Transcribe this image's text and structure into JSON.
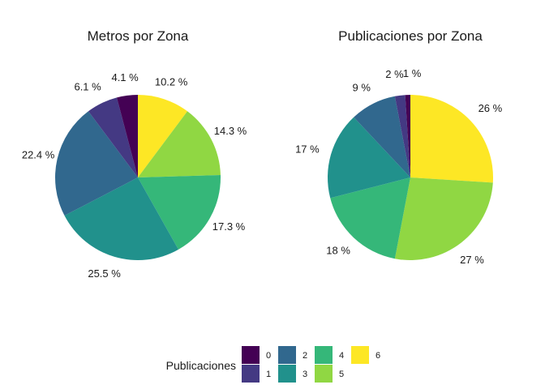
{
  "chart_data": [
    {
      "type": "pie",
      "title": "Metros por Zona",
      "series": [
        {
          "category": "0",
          "value": 4.1,
          "label": "4.1 %"
        },
        {
          "category": "1",
          "value": 6.1,
          "label": "6.1 %"
        },
        {
          "category": "2",
          "value": 22.4,
          "label": "22.4 %"
        },
        {
          "category": "3",
          "value": 25.5,
          "label": "25.5 %"
        },
        {
          "category": "4",
          "value": 17.3,
          "label": "17.3 %"
        },
        {
          "category": "5",
          "value": 14.3,
          "label": "14.3 %"
        },
        {
          "category": "6",
          "value": 10.2,
          "label": "10.2 %"
        }
      ]
    },
    {
      "type": "pie",
      "title": "Publicaciones por Zona",
      "series": [
        {
          "category": "0",
          "value": 1,
          "label": "1 %"
        },
        {
          "category": "1",
          "value": 2,
          "label": "2 %"
        },
        {
          "category": "2",
          "value": 9,
          "label": "9 %"
        },
        {
          "category": "3",
          "value": 17,
          "label": "17 %"
        },
        {
          "category": "4",
          "value": 18,
          "label": "18 %"
        },
        {
          "category": "5",
          "value": 27,
          "label": "27 %"
        },
        {
          "category": "6",
          "value": 26,
          "label": "26 %"
        }
      ]
    }
  ],
  "legend": {
    "title": "Publicaciones",
    "position": "bottom",
    "items": [
      {
        "label": "0",
        "color": "#440154"
      },
      {
        "label": "1",
        "color": "#443983"
      },
      {
        "label": "2",
        "color": "#31688e"
      },
      {
        "label": "3",
        "color": "#21918c"
      },
      {
        "label": "4",
        "color": "#35b779"
      },
      {
        "label": "5",
        "color": "#90d743"
      },
      {
        "label": "6",
        "color": "#fde725"
      }
    ]
  }
}
